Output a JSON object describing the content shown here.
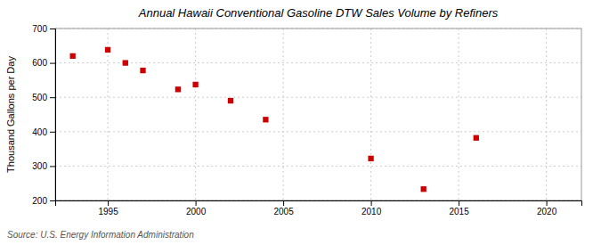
{
  "chart_data": {
    "type": "scatter",
    "title": "Annual Hawaii Conventional Gasoline DTW Sales Volume by Refiners",
    "ylabel": "Thousand Gallons per Day",
    "source": "Source: U.S. Energy Information Administration",
    "x": [
      1993,
      1995,
      1996,
      1997,
      1999,
      2000,
      2002,
      2004,
      2010,
      2013,
      2016
    ],
    "values": [
      620,
      638,
      600,
      578,
      523,
      537,
      490,
      435,
      322,
      233,
      382
    ],
    "xlim": [
      1992,
      2022
    ],
    "ylim": [
      200,
      700
    ],
    "xticks": [
      1995,
      2000,
      2005,
      2010,
      2015,
      2020
    ],
    "yticks": [
      200,
      300,
      400,
      500,
      600,
      700
    ],
    "color": "#cc0000",
    "marker": "square",
    "grid": true
  }
}
